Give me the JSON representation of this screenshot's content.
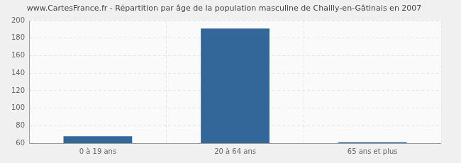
{
  "chart_data": {
    "type": "bar",
    "title": "www.CartesFrance.fr - Répartition par âge de la population masculine de Chailly-en-Gâtinais en 2007",
    "categories": [
      "0 à 19 ans",
      "20 à 64 ans",
      "65 ans et plus"
    ],
    "values": [
      68,
      191,
      61
    ],
    "color": "#336699",
    "ylim": [
      60,
      200
    ],
    "yticks": [
      60,
      80,
      100,
      120,
      140,
      160,
      180,
      200
    ],
    "grid": true
  }
}
